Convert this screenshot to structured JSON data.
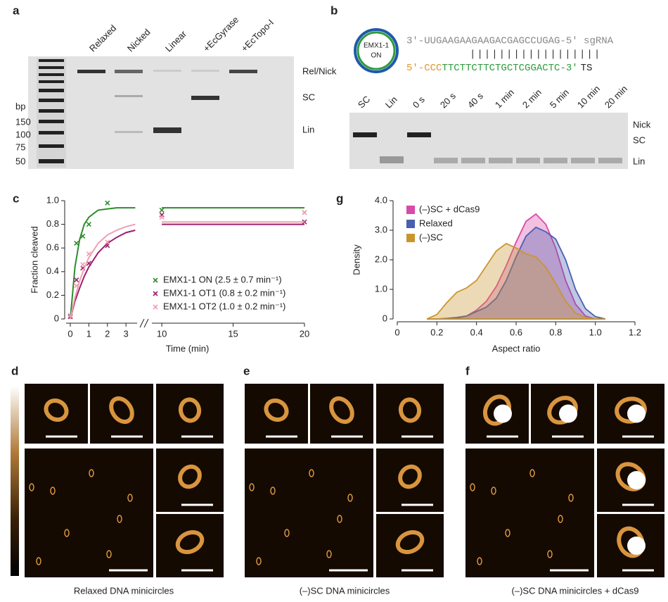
{
  "panels": {
    "a": {
      "label": "a",
      "lanes": [
        "Relaxed",
        "Nicked",
        "Linear",
        "+EcGyrase",
        "+EcTopo-I"
      ],
      "bands": [
        "Rel/Nick",
        "SC",
        "Lin"
      ],
      "ladder_unit": "bp",
      "ladder": [
        "150",
        "100",
        "75",
        "50"
      ]
    },
    "b": {
      "label": "b",
      "circle": [
        "EMX1-1",
        "ON"
      ],
      "sgrna": "3′-UUGAAGAAGAAGACGAGCCUGAG-5′ sgRNA",
      "pairs": "||||||||||||||||||",
      "ts_pam": "5′-CCC",
      "ts_seq": "TTCTTCTTCTGCTCGGACTC-3′",
      "ts_name": "TS",
      "lanes": [
        "SC",
        "Lin",
        "0 s",
        "20 s",
        "40 s",
        "1 min",
        "2 min",
        "5 min",
        "10 min",
        "20 min"
      ],
      "bands": [
        "Nick",
        "SC",
        "Lin"
      ]
    },
    "d": {
      "label": "d",
      "caption": "Relaxed DNA minicircles"
    },
    "e": {
      "label": "e",
      "caption": "(–)SC DNA minicircles"
    },
    "f": {
      "label": "f",
      "caption": "(–)SC DNA minicircles + dCas9"
    }
  },
  "chart_data": [
    {
      "type": "line",
      "label": "c",
      "xlabel": "Time (min)",
      "ylabel": "Fraction cleaved",
      "xlim": [
        0,
        20
      ],
      "x_break": [
        3.6,
        9.6
      ],
      "ylim": [
        0,
        1
      ],
      "xticks": [
        0,
        1,
        2,
        3,
        10,
        15,
        20
      ],
      "yticks": [
        0,
        0.2,
        0.4,
        0.6,
        0.8,
        {
          "value": 1,
          "label": "1.0"
        }
      ],
      "fit_x": [
        0,
        0.25,
        0.5,
        0.75,
        1,
        1.5,
        2,
        2.5,
        3,
        3.5,
        10,
        20
      ],
      "series": [
        {
          "name": "EMX1-1 ON (2.5 ± 0.7 min⁻¹)",
          "color": "#2e8b2e",
          "x": [
            0,
            0.33,
            0.67,
            1,
            2,
            10,
            20
          ],
          "values": [
            0.02,
            0.64,
            0.7,
            0.8,
            0.98,
            0.92,
            0.9
          ],
          "fit_values": [
            0,
            0.44,
            0.67,
            0.8,
            0.86,
            0.92,
            0.93,
            0.94,
            0.94,
            0.94,
            0.94,
            0.94
          ]
        },
        {
          "name": "EMX1-1 OT1 (0.8 ± 0.2 min⁻¹)",
          "color": "#9c1f6e",
          "x": [
            0,
            0.33,
            0.67,
            1,
            2,
            10,
            20
          ],
          "values": [
            0.02,
            0.33,
            0.43,
            0.47,
            0.62,
            0.88,
            0.82
          ],
          "fit_values": [
            0,
            0.15,
            0.26,
            0.36,
            0.44,
            0.56,
            0.64,
            0.69,
            0.73,
            0.75,
            0.8,
            0.8
          ]
        },
        {
          "name": "EMX1-1 OT2 (1.0 ± 0.2 min⁻¹)",
          "color": "#f0a0b0",
          "x": [
            0,
            0.33,
            0.67,
            1,
            2,
            10,
            20
          ],
          "values": [
            0.03,
            0.28,
            0.46,
            0.55,
            0.65,
            0.86,
            0.9
          ],
          "fit_values": [
            0,
            0.18,
            0.32,
            0.43,
            0.52,
            0.64,
            0.71,
            0.75,
            0.78,
            0.8,
            0.82,
            0.82
          ]
        }
      ]
    },
    {
      "type": "area",
      "label": "g",
      "xlabel": "Aspect ratio",
      "ylabel": "Density",
      "xlim": [
        0,
        1.2
      ],
      "ylim": [
        0,
        4
      ],
      "xticks": [
        0,
        0.2,
        0.4,
        0.6,
        0.8,
        {
          "value": 1,
          "label": "1.0"
        },
        1.2
      ],
      "yticks": [
        0,
        {
          "value": 1,
          "label": "1.0"
        },
        {
          "value": 2,
          "label": "2.0"
        },
        {
          "value": 3,
          "label": "3.0"
        },
        {
          "value": 4,
          "label": "4.0"
        }
      ],
      "x": [
        0.15,
        0.2,
        0.25,
        0.3,
        0.35,
        0.4,
        0.45,
        0.5,
        0.55,
        0.6,
        0.65,
        0.7,
        0.75,
        0.8,
        0.85,
        0.9,
        0.95,
        1.0,
        1.05
      ],
      "series": [
        {
          "name": "(–)SC + dCas9",
          "color": "#d94aa8",
          "values": [
            0,
            0,
            0,
            0.02,
            0.1,
            0.3,
            0.6,
            1.1,
            1.8,
            2.6,
            3.3,
            3.55,
            3.2,
            2.4,
            1.3,
            0.5,
            0.1,
            0,
            0
          ]
        },
        {
          "name": "Relaxed",
          "color": "#4a5fb0",
          "values": [
            0,
            0,
            0.02,
            0.05,
            0.1,
            0.25,
            0.4,
            0.7,
            1.3,
            2.1,
            2.8,
            3.1,
            2.95,
            2.7,
            2.0,
            1.0,
            0.35,
            0.08,
            0
          ]
        },
        {
          "name": "(–)SC",
          "color": "#c9962e",
          "values": [
            0,
            0.15,
            0.55,
            0.9,
            1.05,
            1.3,
            1.8,
            2.3,
            2.55,
            2.4,
            2.2,
            2.1,
            1.75,
            1.2,
            0.6,
            0.2,
            0.05,
            0,
            0
          ]
        }
      ]
    }
  ]
}
